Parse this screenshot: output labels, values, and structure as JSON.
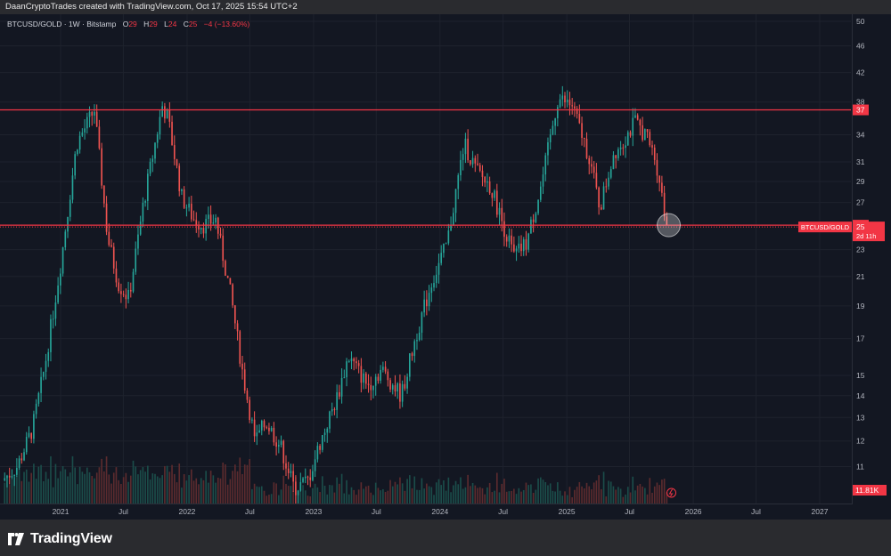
{
  "header": {
    "attribution": "DaanCryptoTrades created with TradingView.com, Oct 17, 2025 15:54 UTC+2"
  },
  "legend": {
    "symbol": "BTCUSD/GOLD · 1W · Bitstamp",
    "o_label": "O",
    "o": "29",
    "h_label": "H",
    "h": "29",
    "l_label": "L",
    "l": "24",
    "c_label": "C",
    "c": "25",
    "change": "−4 (−13.60%)"
  },
  "footer": {
    "brand": "TradingView"
  },
  "colors": {
    "up": "#26a69a",
    "down": "#ef5350",
    "line": "#f23645",
    "background": "#131722",
    "grid": "#1e222d",
    "text": "#b2b5be"
  },
  "chart_data": {
    "type": "candlestick",
    "symbol": "BTCUSD/GOLD",
    "interval": "1W",
    "exchange": "Bitstamp",
    "scale": "log",
    "ylim": [
      10,
      50
    ],
    "y_ticks": [
      50,
      46,
      42,
      38,
      34,
      31,
      29,
      27,
      25,
      23,
      21,
      19,
      17,
      15,
      14,
      13,
      12,
      11
    ],
    "x_ticks": [
      {
        "label": "2021",
        "date": "2021-01-01"
      },
      {
        "label": "Jul",
        "date": "2021-07-01"
      },
      {
        "label": "2022",
        "date": "2022-01-01"
      },
      {
        "label": "Jul",
        "date": "2022-07-01"
      },
      {
        "label": "2023",
        "date": "2023-01-01"
      },
      {
        "label": "Jul",
        "date": "2023-07-01"
      },
      {
        "label": "2024",
        "date": "2024-01-01"
      },
      {
        "label": "Jul",
        "date": "2024-07-01"
      },
      {
        "label": "2025",
        "date": "2025-01-01"
      },
      {
        "label": "Jul",
        "date": "2025-07-01"
      },
      {
        "label": "2026",
        "date": "2026-01-01"
      },
      {
        "label": "Jul",
        "date": "2026-07-01"
      },
      {
        "label": "2027",
        "date": "2027-01-01"
      }
    ],
    "xlim": [
      "2020-07-10",
      "2027-04-01"
    ],
    "price_path": [
      [
        "2020-07-20",
        10.5
      ],
      [
        "2020-09-01",
        11.0
      ],
      [
        "2020-10-15",
        12.5
      ],
      [
        "2020-11-20",
        15.5
      ],
      [
        "2021-01-05",
        22.0
      ],
      [
        "2021-02-20",
        33.0
      ],
      [
        "2021-04-12",
        37.0
      ],
      [
        "2021-05-20",
        24.0
      ],
      [
        "2021-06-20",
        20.5
      ],
      [
        "2021-07-20",
        19.5
      ],
      [
        "2021-09-01",
        27.0
      ],
      [
        "2021-10-25",
        37.5
      ],
      [
        "2021-11-10",
        36.0
      ],
      [
        "2021-12-20",
        27.5
      ],
      [
        "2022-01-24",
        25.5
      ],
      [
        "2022-02-20",
        25.0
      ],
      [
        "2022-03-28",
        25.5
      ],
      [
        "2022-05-12",
        19.5
      ],
      [
        "2022-06-15",
        15.0
      ],
      [
        "2022-07-20",
        12.0
      ],
      [
        "2022-08-20",
        12.8
      ],
      [
        "2022-10-01",
        11.8
      ],
      [
        "2022-11-10",
        10.2
      ],
      [
        "2022-12-20",
        10.5
      ],
      [
        "2023-01-20",
        11.8
      ],
      [
        "2023-03-15",
        14.0
      ],
      [
        "2023-04-15",
        16.0
      ],
      [
        "2023-06-10",
        14.5
      ],
      [
        "2023-07-20",
        15.3
      ],
      [
        "2023-09-15",
        14.0
      ],
      [
        "2023-10-25",
        17.0
      ],
      [
        "2023-12-10",
        20.5
      ],
      [
        "2024-01-25",
        23.5
      ],
      [
        "2024-03-14",
        33.0
      ],
      [
        "2024-04-20",
        30.0
      ],
      [
        "2024-05-30",
        28.5
      ],
      [
        "2024-07-05",
        25.0
      ],
      [
        "2024-08-05",
        22.5
      ],
      [
        "2024-09-10",
        23.5
      ],
      [
        "2024-10-25",
        29.0
      ],
      [
        "2024-12-10",
        38.5
      ],
      [
        "2025-01-20",
        37.5
      ],
      [
        "2025-03-10",
        31.5
      ],
      [
        "2025-04-10",
        26.5
      ],
      [
        "2025-05-20",
        32.0
      ],
      [
        "2025-06-20",
        33.5
      ],
      [
        "2025-07-20",
        35.5
      ],
      [
        "2025-08-20",
        34.0
      ],
      [
        "2025-09-15",
        31.5
      ],
      [
        "2025-10-01",
        29.0
      ],
      [
        "2025-10-17",
        25.0
      ]
    ],
    "volume_scale": 11810,
    "horizontal_lines": [
      {
        "value": 37,
        "label": "37"
      },
      {
        "value": 25,
        "label": "25"
      }
    ],
    "last_price": {
      "value": 25,
      "symbol_label": "BTCUSD/GOLD",
      "price_label": "25",
      "countdown": "2d 11h"
    },
    "volume_label": "11.81K"
  }
}
